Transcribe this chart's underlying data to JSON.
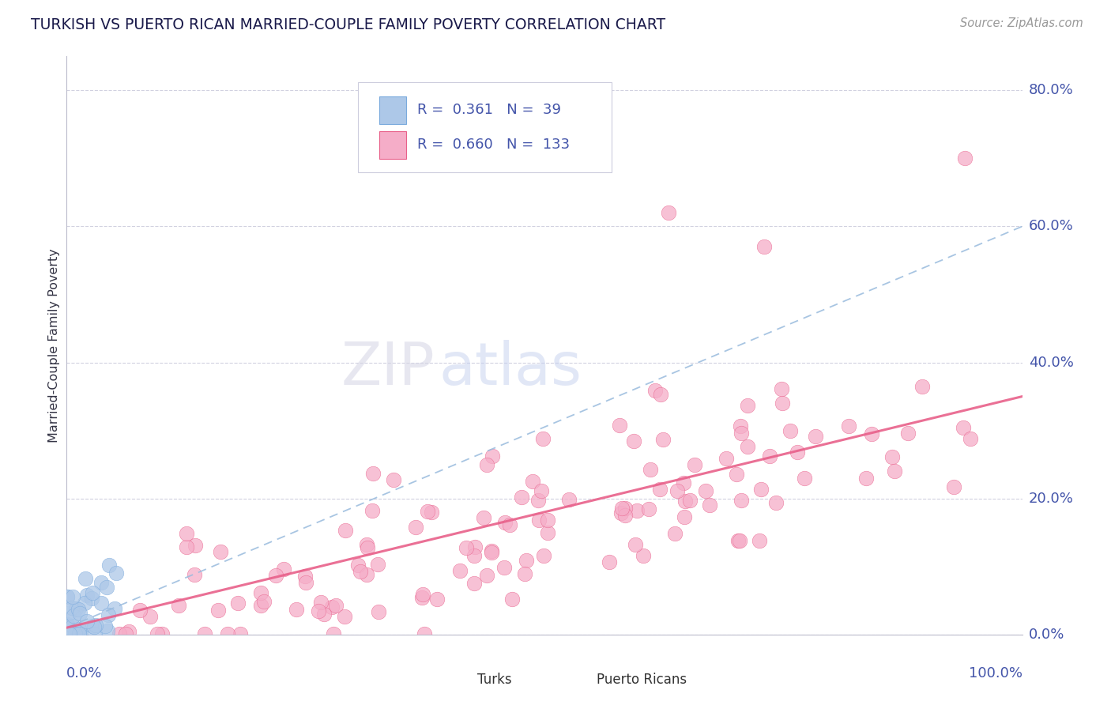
{
  "title": "TURKISH VS PUERTO RICAN MARRIED-COUPLE FAMILY POVERTY CORRELATION CHART",
  "source": "Source: ZipAtlas.com",
  "ylabel": "Married-Couple Family Poverty",
  "legend_turks": {
    "R": 0.361,
    "N": 39,
    "label": "Turks"
  },
  "legend_pr": {
    "R": 0.66,
    "N": 133,
    "label": "Puerto Ricans"
  },
  "turks_color": "#adc8e8",
  "pr_color": "#f5adc8",
  "turks_edge_color": "#7aaadd",
  "pr_edge_color": "#e8608a",
  "turks_line_color": "#99bbdd",
  "pr_line_color": "#e8608a",
  "title_color": "#1a1a4a",
  "axis_label_color": "#4455aa",
  "grid_color": "#ccccdd",
  "background_color": "#ffffff",
  "watermark_zip_color": "#d8d8e8",
  "watermark_atlas_color": "#c8d4ee",
  "xlim": [
    0.0,
    1.0
  ],
  "ylim": [
    0.0,
    0.85
  ],
  "yticks": [
    0.0,
    0.2,
    0.4,
    0.6,
    0.8
  ],
  "ytick_labels": [
    "0.0%",
    "20.0%",
    "40.0%",
    "60.0%",
    "80.0%"
  ],
  "turks_line_start_y": 0.01,
  "turks_line_end_y": 0.6,
  "pr_line_start_y": 0.01,
  "pr_line_end_y": 0.35
}
